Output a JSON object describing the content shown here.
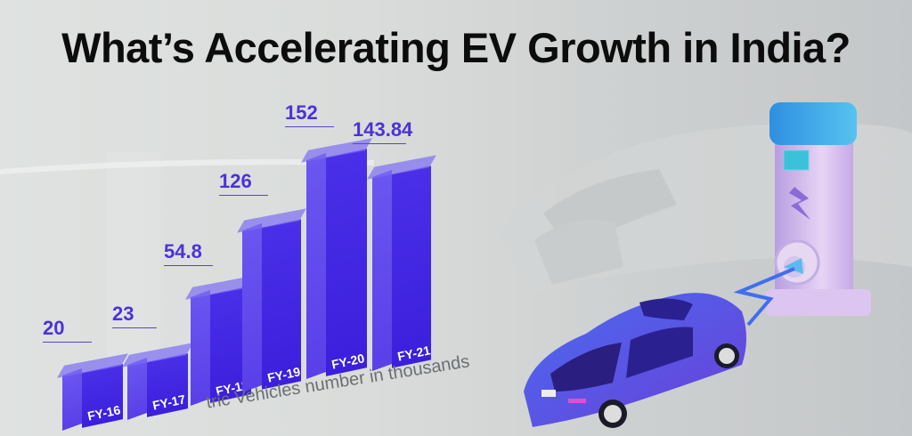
{
  "title": "What’s Accelerating EV Growth in India?",
  "caption": "tric Vehicles number in thousands",
  "colors": {
    "bar": "#4a2fe8",
    "value_label": "#4b32d9",
    "title": "#0c0c0c",
    "charger_body": "#c9a8e6",
    "charger_top": "#3aa6e8",
    "car": "#4b3fd9"
  },
  "chart_data": {
    "type": "bar",
    "title": "What’s Accelerating EV Growth in India?",
    "xlabel": "",
    "ylabel": "Electric Vehicles number in thousands",
    "categories": [
      "FY-16",
      "FY-17",
      "FY-18",
      "FY-19",
      "FY-20",
      "FY-21"
    ],
    "values": [
      20,
      23,
      54.8,
      126,
      152,
      143.84
    ],
    "value_labels": [
      "20",
      "23",
      "54.8",
      "126",
      "152",
      "143.84"
    ],
    "grid": false,
    "legend": null
  },
  "bars": [
    {
      "label": "FY-16",
      "value": "20"
    },
    {
      "label": "FY-17",
      "value": "23"
    },
    {
      "label": "FY-18",
      "value": "54.8"
    },
    {
      "label": "FY-19",
      "value": "126"
    },
    {
      "label": "FY-20",
      "value": "152"
    },
    {
      "label": "FY-21",
      "value": "143.84"
    }
  ],
  "illustration": {
    "car": "electric-car-icon",
    "charger": "charging-station-icon",
    "bolt": "lightning-bolt-icon",
    "battery": "battery-icon"
  }
}
